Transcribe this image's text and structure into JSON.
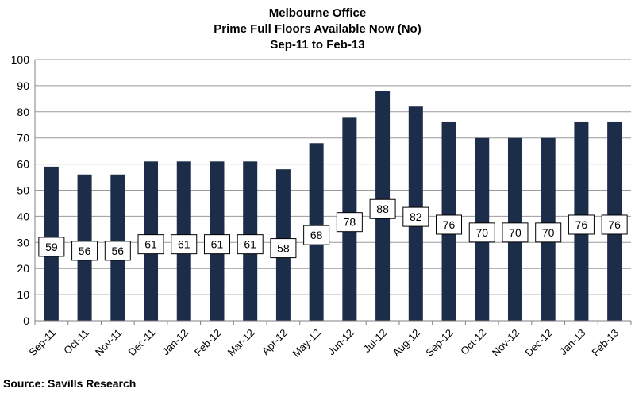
{
  "colors": {
    "bar": "#1c2d4a",
    "grid": "#9a9a9a",
    "axis": "#808080",
    "label_box_border": "#000000",
    "label_box_fill": "#ffffff"
  },
  "chart_data": {
    "type": "bar",
    "title": [
      "Melbourne Office",
      "Prime Full Floors Available Now (No)",
      "Sep-11 to Feb-13"
    ],
    "categories": [
      "Sep-11",
      "Oct-11",
      "Nov-11",
      "Dec-11",
      "Jan-12",
      "Feb-12",
      "Mar-12",
      "Apr-12",
      "May-12",
      "Jun-12",
      "Jul-12",
      "Aug-12",
      "Sep-12",
      "Oct-12",
      "Nov-12",
      "Dec-12",
      "Jan-13",
      "Feb-13"
    ],
    "values": [
      59,
      56,
      56,
      61,
      61,
      61,
      61,
      58,
      68,
      78,
      88,
      82,
      76,
      70,
      70,
      70,
      76,
      76
    ],
    "ylim": [
      0,
      100
    ],
    "yticks": [
      0,
      10,
      20,
      30,
      40,
      50,
      60,
      70,
      80,
      90,
      100
    ],
    "grid": true,
    "legend": "none",
    "source": "Source: Savills Research"
  }
}
